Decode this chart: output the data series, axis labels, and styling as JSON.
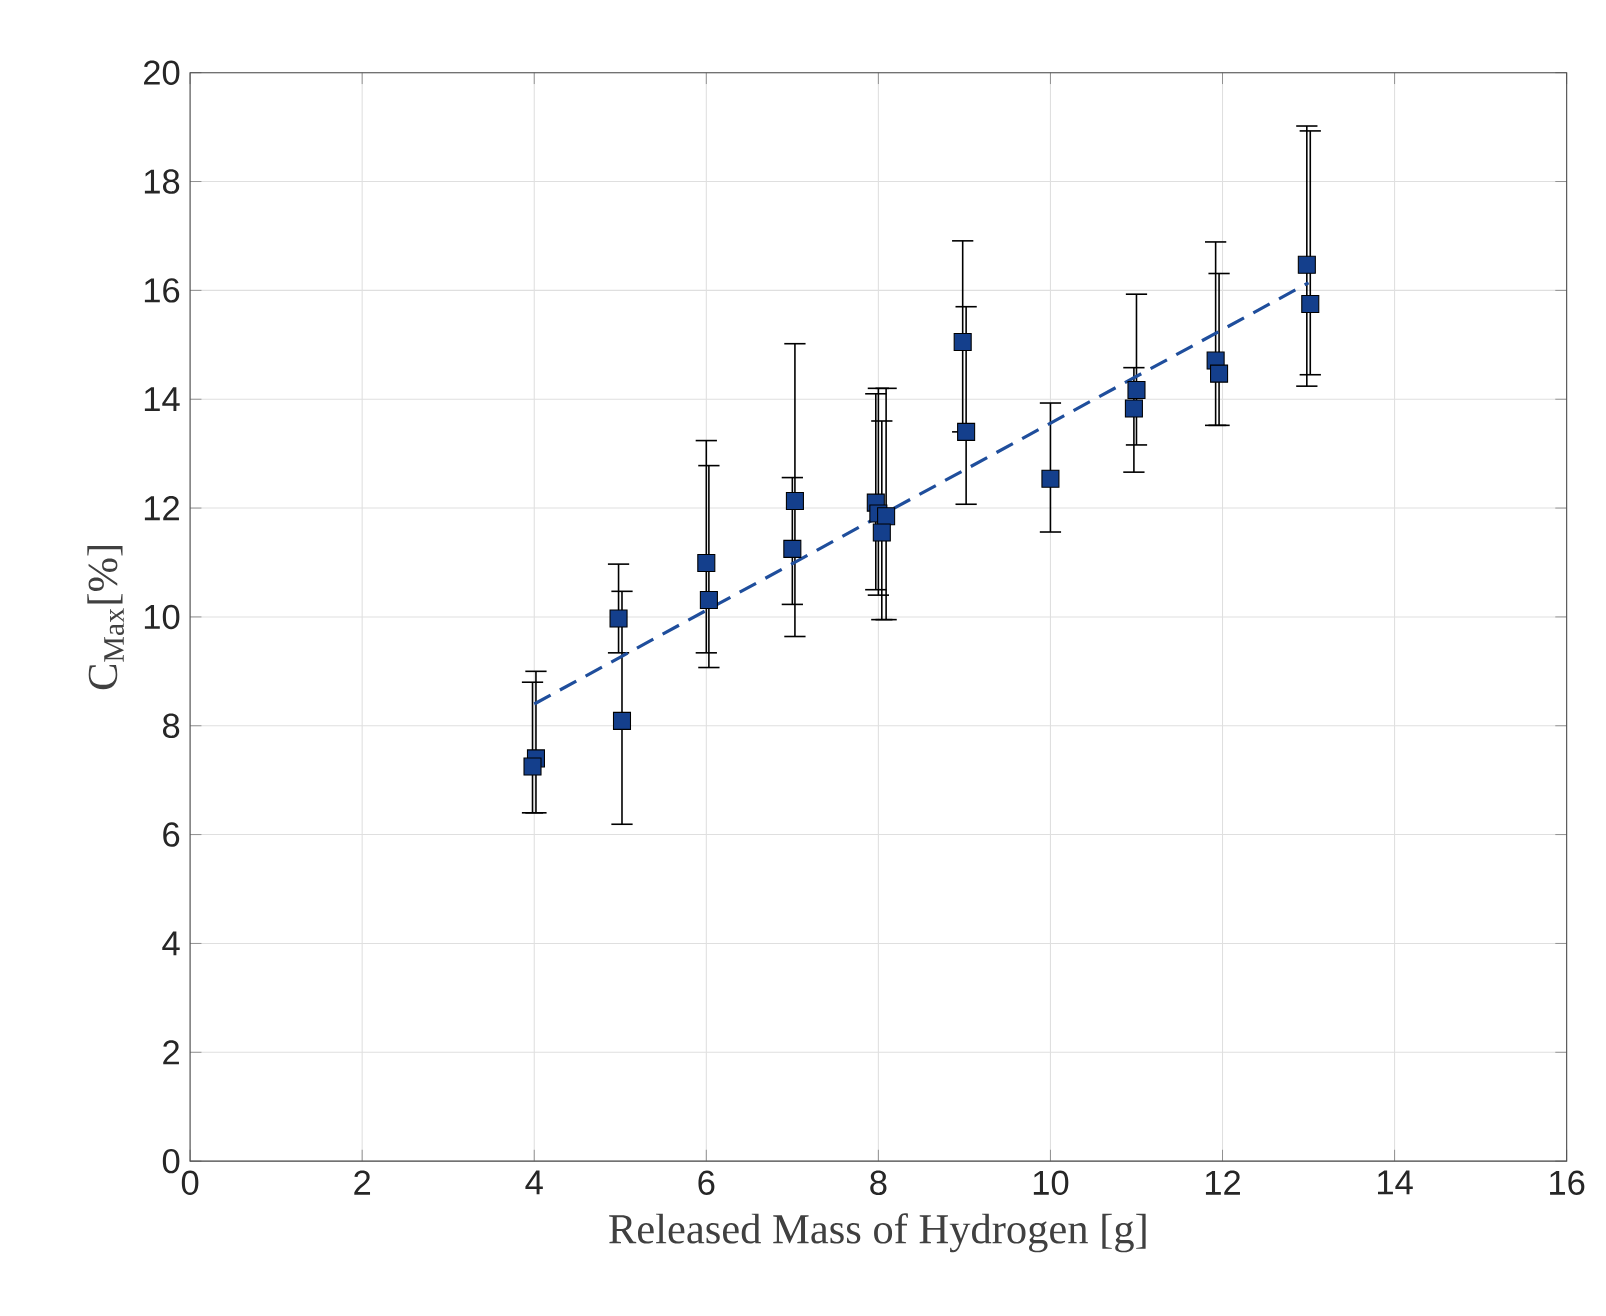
{
  "chart_data": {
    "type": "scatter",
    "xlabel": "Released Mass of Hydrogen [g]",
    "ylabel": "C$_{Max}$[%]",
    "xlim": [
      0,
      16
    ],
    "xticks": [
      0,
      2,
      4,
      6,
      8,
      10,
      12,
      14,
      16
    ],
    "ylim": [
      0,
      20
    ],
    "yticks": [
      0,
      2,
      4,
      6,
      8,
      10,
      12,
      14,
      16,
      18,
      20
    ],
    "grid": true,
    "series": [
      {
        "color": "#143f8c",
        "marker": "square",
        "x": [
          4.02,
          3.98,
          4.98,
          5.02,
          6,
          6.03,
          7.03,
          7,
          7.97,
          8,
          8.09,
          8.04,
          8.98,
          9.02,
          10,
          11,
          10.97,
          11.92,
          11.96,
          12.98,
          13.02
        ],
        "values": [
          7.4,
          7.25,
          9.97,
          8.09,
          10.99,
          10.31,
          12.13,
          11.25,
          12.1,
          11.9,
          11.85,
          11.55,
          15.05,
          13.4,
          12.54,
          14.17,
          13.83,
          14.71,
          14.47,
          16.47,
          15.75
        ],
        "errors": [
          [
            6.4,
            9.0
          ],
          [
            6.4,
            8.8
          ],
          [
            9.34,
            10.97
          ],
          [
            6.19,
            10.47
          ],
          [
            9.34,
            13.24
          ],
          [
            9.07,
            12.78
          ],
          [
            9.64,
            15.02
          ],
          [
            10.23,
            12.56
          ],
          [
            10.5,
            14.1
          ],
          [
            10.4,
            14.2
          ],
          [
            9.95,
            14.2
          ],
          [
            9.95,
            13.6
          ],
          [
            13.4,
            16.91
          ],
          [
            12.07,
            15.7
          ],
          [
            11.56,
            13.93
          ],
          [
            13.16,
            15.93
          ],
          [
            12.66,
            14.58
          ],
          [
            13.52,
            16.89
          ],
          [
            13.52,
            16.31
          ],
          [
            14.24,
            19.02
          ],
          [
            14.45,
            18.93
          ]
        ]
      },
      {
        "type": "line",
        "color": "#1f4e9c",
        "line_style": "dashed",
        "marker": "none",
        "x": [
          4,
          13
        ],
        "values": [
          8.4,
          16.14
        ]
      }
    ]
  }
}
